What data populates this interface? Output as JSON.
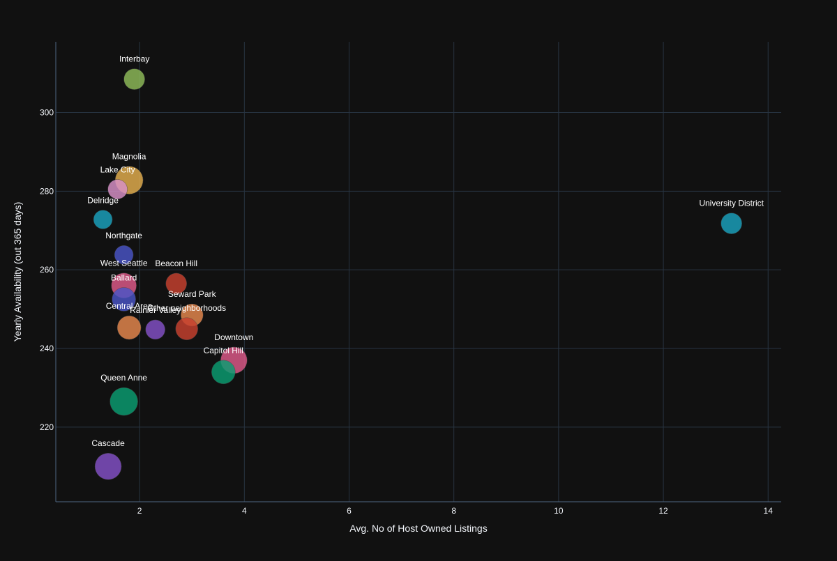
{
  "chart_data": {
    "type": "scatter",
    "xlabel": "Avg. No of Host Owned Listings",
    "ylabel": "Yearly Availability (out 365 days)",
    "xlim": [
      0.4,
      14.25
    ],
    "ylim": [
      201,
      318
    ],
    "xticks": [
      2,
      4,
      6,
      8,
      10,
      12,
      14
    ],
    "yticks": [
      220,
      240,
      260,
      280,
      300
    ],
    "grid": true,
    "legend": "none",
    "points": [
      {
        "label": "Interbay",
        "x": 1.9,
        "y": 308.5,
        "size": 30,
        "color": "#8fbc5a"
      },
      {
        "label": "Magnolia",
        "x": 1.8,
        "y": 282.8,
        "size": 40,
        "color": "#e6b04f"
      },
      {
        "label": "Lake City",
        "x": 1.58,
        "y": 280.5,
        "size": 28,
        "color": "#d991c9"
      },
      {
        "label": "Delridge",
        "x": 1.3,
        "y": 272.8,
        "size": 27,
        "color": "#1aa3bf"
      },
      {
        "label": "University District",
        "x": 13.3,
        "y": 271.8,
        "size": 30,
        "color": "#1aa3bf"
      },
      {
        "label": "Northgate",
        "x": 1.7,
        "y": 263.8,
        "size": 27,
        "color": "#4a55c7"
      },
      {
        "label": "West Seattle",
        "x": 1.7,
        "y": 256.0,
        "size": 36,
        "color": "#e05b8a"
      },
      {
        "label": "Beacon Hill",
        "x": 2.7,
        "y": 256.5,
        "size": 30,
        "color": "#c9412f"
      },
      {
        "label": "Ballard",
        "x": 1.7,
        "y": 252.5,
        "size": 34,
        "color": "#4a55c7"
      },
      {
        "label": "Seward Park",
        "x": 3.0,
        "y": 248.5,
        "size": 32,
        "color": "#e8894e"
      },
      {
        "label": "Central Area",
        "x": 1.8,
        "y": 245.3,
        "size": 34,
        "color": "#e8894e"
      },
      {
        "label": "Rainier Valley",
        "x": 2.3,
        "y": 244.8,
        "size": 28,
        "color": "#8451c9"
      },
      {
        "label": "Other neighborhoods",
        "x": 2.9,
        "y": 245.0,
        "size": 32,
        "color": "#c9412f"
      },
      {
        "label": "Downtown",
        "x": 3.8,
        "y": 237.0,
        "size": 38,
        "color": "#e05b8a"
      },
      {
        "label": "Capitol Hill",
        "x": 3.6,
        "y": 234.0,
        "size": 34,
        "color": "#0a9e72"
      },
      {
        "label": "Queen Anne",
        "x": 1.7,
        "y": 226.5,
        "size": 40,
        "color": "#0a9e72"
      },
      {
        "label": "Cascade",
        "x": 1.4,
        "y": 210.0,
        "size": 38,
        "color": "#8451c9"
      }
    ]
  }
}
